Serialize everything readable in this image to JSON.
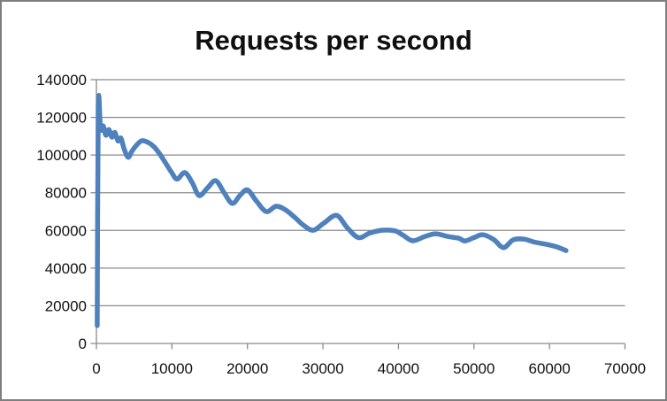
{
  "window": {
    "background": "#ffffff",
    "border_color": "#7f7f7f"
  },
  "chart_data": {
    "type": "line",
    "title": "Requests per second",
    "xlabel": "",
    "ylabel": "",
    "xlim": [
      0,
      70000
    ],
    "ylim": [
      0,
      140000
    ],
    "x_ticks": [
      0,
      10000,
      20000,
      30000,
      40000,
      50000,
      60000,
      70000
    ],
    "y_ticks": [
      0,
      20000,
      40000,
      60000,
      80000,
      100000,
      120000,
      140000
    ],
    "grid": "horizontal-only",
    "legend": "none",
    "colors": {
      "line": "#4F81BD",
      "grid": "#8a8a8a",
      "axis": "#8a8a8a",
      "tick_text": "#111111",
      "title_text": "#0f0f0f"
    },
    "series": [
      {
        "name": "Requests per second",
        "points": [
          [
            100,
            9500
          ],
          [
            250,
            126000
          ],
          [
            550,
            113500
          ],
          [
            900,
            115500
          ],
          [
            1250,
            110500
          ],
          [
            1650,
            113500
          ],
          [
            2050,
            109500
          ],
          [
            2450,
            112000
          ],
          [
            2850,
            107500
          ],
          [
            3250,
            109000
          ],
          [
            3650,
            103500
          ],
          [
            4200,
            98800
          ],
          [
            4700,
            102000
          ],
          [
            5300,
            105200
          ],
          [
            6000,
            107600
          ],
          [
            6800,
            106800
          ],
          [
            7600,
            104500
          ],
          [
            8400,
            100500
          ],
          [
            9200,
            95500
          ],
          [
            10000,
            90500
          ],
          [
            10700,
            87200
          ],
          [
            11700,
            90700
          ],
          [
            12700,
            85200
          ],
          [
            13600,
            78500
          ],
          [
            14700,
            82500
          ],
          [
            15800,
            86400
          ],
          [
            16900,
            80000
          ],
          [
            18000,
            74300
          ],
          [
            19000,
            78500
          ],
          [
            20000,
            81500
          ],
          [
            21200,
            75500
          ],
          [
            22500,
            70000
          ],
          [
            23800,
            72800
          ],
          [
            25000,
            71000
          ],
          [
            26300,
            66800
          ],
          [
            27400,
            62800
          ],
          [
            28700,
            60100
          ],
          [
            30100,
            63800
          ],
          [
            31800,
            68000
          ],
          [
            33200,
            61500
          ],
          [
            34700,
            56200
          ],
          [
            36200,
            58600
          ],
          [
            37800,
            60100
          ],
          [
            39500,
            59800
          ],
          [
            40600,
            57500
          ],
          [
            41900,
            54500
          ],
          [
            43400,
            56600
          ],
          [
            44900,
            58200
          ],
          [
            46500,
            56800
          ],
          [
            48000,
            55800
          ],
          [
            48800,
            54400
          ],
          [
            50000,
            56200
          ],
          [
            51200,
            57700
          ],
          [
            52600,
            55200
          ],
          [
            53900,
            50900
          ],
          [
            55200,
            55000
          ],
          [
            56600,
            55400
          ],
          [
            58000,
            53800
          ],
          [
            59600,
            52600
          ],
          [
            61000,
            51200
          ],
          [
            62200,
            49300
          ]
        ]
      }
    ]
  }
}
